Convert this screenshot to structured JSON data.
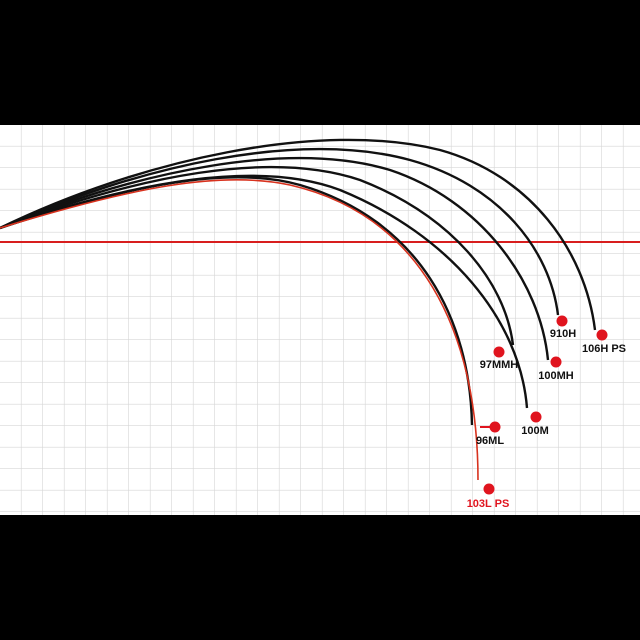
{
  "labels": [
    "910H",
    "106H PS",
    "97MMH",
    "100MH",
    "100M",
    "96ML",
    "103L PS"
  ]
}
